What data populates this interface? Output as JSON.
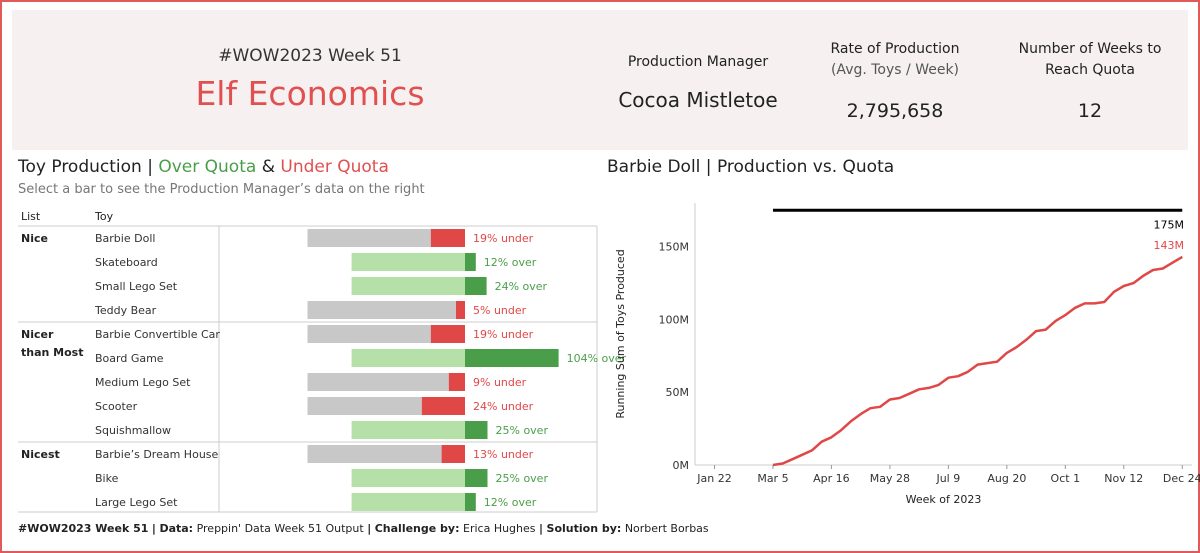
{
  "colors": {
    "over": "#4a9e4a",
    "over_light": "#b5e0a8",
    "under": "#e04848",
    "grey": "#c8c8c8",
    "line": "#e04848",
    "quota": "#000000",
    "frame": "#e05a5a",
    "header_bg": "#f7f0f0"
  },
  "header": {
    "week": "#WOW2023 Week 51",
    "title": "Elf Economics",
    "manager_label": "Production Manager",
    "manager_value": "Cocoa Mistletoe",
    "rate_label": "Rate of Production",
    "rate_sublabel": "(Avg. Toys / Week)",
    "rate_value": "2,795,658",
    "weeks_label_1": "Number of Weeks to",
    "weeks_label_2": "Reach Quota",
    "weeks_value": "12"
  },
  "left": {
    "title_main": "Toy Production",
    "title_sep": "|",
    "title_over": "Over Quota",
    "title_amp": "&",
    "title_under": "Under Quota",
    "subtitle": "Select a bar to see the Production Manager’s data on the right",
    "col_list": "List",
    "col_toy": "Toy"
  },
  "right": {
    "title_toy": "Barbie Doll",
    "title_sep": "|",
    "title_prod": "Production vs.",
    "title_quota": "Quota"
  },
  "footer": {
    "week": "#WOW2023 Week 51",
    "data_label": "Data:",
    "data_value": "Preppin' Data Week 51 Output",
    "challenge_label": "Challenge by:",
    "challenge_value": "Erica Hughes",
    "solution_label": "Solution by:",
    "solution_value": "Norbert Borbas"
  },
  "chart_data": [
    {
      "type": "bar",
      "title": "Toy Production | Over Quota & Under Quota",
      "groups": [
        {
          "list": "Nice",
          "toys": [
            {
              "toy": "Barbie Doll",
              "pct": -19,
              "label": "19% under"
            },
            {
              "toy": "Skateboard",
              "pct": 12,
              "label": "12% over"
            },
            {
              "toy": "Small Lego Set",
              "pct": 24,
              "label": "24% over"
            },
            {
              "toy": "Teddy Bear",
              "pct": -5,
              "label": "5% under"
            }
          ]
        },
        {
          "list": "Nicer than Most",
          "toys": [
            {
              "toy": "Barbie Convertible Car",
              "pct": -19,
              "label": "19% under"
            },
            {
              "toy": "Board Game",
              "pct": 104,
              "label": "104% over"
            },
            {
              "toy": "Medium Lego Set",
              "pct": -9,
              "label": "9% under"
            },
            {
              "toy": "Scooter",
              "pct": -24,
              "label": "24% under"
            },
            {
              "toy": "Squishmallow",
              "pct": 25,
              "label": "25% over"
            }
          ]
        },
        {
          "list": "Nicest",
          "toys": [
            {
              "toy": "Barbie’s Dream House",
              "pct": -13,
              "label": "13% under"
            },
            {
              "toy": "Bike",
              "pct": 25,
              "label": "25% over"
            },
            {
              "toy": "Large Lego Set",
              "pct": 12,
              "label": "12% over"
            }
          ]
        }
      ]
    },
    {
      "type": "line",
      "title": "Barbie Doll | Production vs. Quota",
      "xlabel": "Week of 2023",
      "ylabel": "Running Sum of Toys Produced",
      "ylim": [
        0,
        180
      ],
      "yticks": [
        0,
        50,
        100,
        150
      ],
      "ytick_labels": [
        "0M",
        "50M",
        "100M",
        "150M"
      ],
      "xlim": [
        1,
        52
      ],
      "xticks": [
        3,
        9,
        15,
        21,
        27,
        33,
        39,
        45,
        51
      ],
      "xtick_labels": [
        "Jan 22",
        "Mar 5",
        "Apr 16",
        "May 28",
        "Jul 9",
        "Aug 20",
        "Oct 1",
        "Nov 12",
        "Dec 24"
      ],
      "quota": 175,
      "quota_label": "175M",
      "end_label": "143M",
      "series": [
        {
          "name": "Running Sum of Toys Produced (M)",
          "values": [
            0,
            1,
            4,
            7,
            10,
            16,
            19,
            24,
            30,
            35,
            39,
            40,
            45,
            46,
            49,
            52,
            53,
            55,
            60,
            61,
            64,
            69,
            70,
            71,
            77,
            81,
            86,
            92,
            93,
            99,
            103,
            108,
            111,
            111,
            112,
            119,
            123,
            125,
            130,
            134,
            135,
            139,
            143
          ]
        }
      ]
    }
  ]
}
